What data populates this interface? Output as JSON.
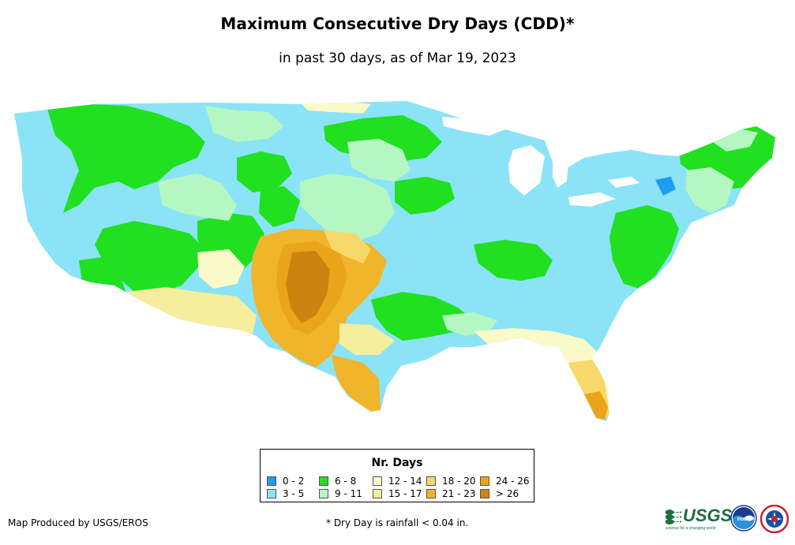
{
  "header": {
    "title": "Maximum Consecutive Dry Days (CDD)*",
    "subtitle": "in past 30 days, as of Mar 19, 2023"
  },
  "legend": {
    "title": "Nr. Days",
    "items": [
      {
        "label": "0 - 2",
        "color": "#1f9bf0"
      },
      {
        "label": "3 - 5",
        "color": "#8be3f8"
      },
      {
        "label": "6 - 8",
        "color": "#20e020"
      },
      {
        "label": "9 - 11",
        "color": "#b4f7c2"
      },
      {
        "label": "12 - 14",
        "color": "#fafac8"
      },
      {
        "label": "15 - 17",
        "color": "#f5ee9c"
      },
      {
        "label": "18 - 20",
        "color": "#f8d86a"
      },
      {
        "label": "21 - 23",
        "color": "#f0b52a"
      },
      {
        "label": "24 - 26",
        "color": "#eba51a"
      },
      {
        "label": "> 26",
        "color": "#cc8410"
      }
    ]
  },
  "footer": {
    "credit": "Map Produced by USGS/EROS",
    "note": "* Dry Day is rainfall < 0.04 in."
  },
  "logos": {
    "usgs_text": "USGS",
    "usgs_tagline": "science for a changing world",
    "noaa_text": "noaa",
    "nws": "nws-logo-icon"
  }
}
